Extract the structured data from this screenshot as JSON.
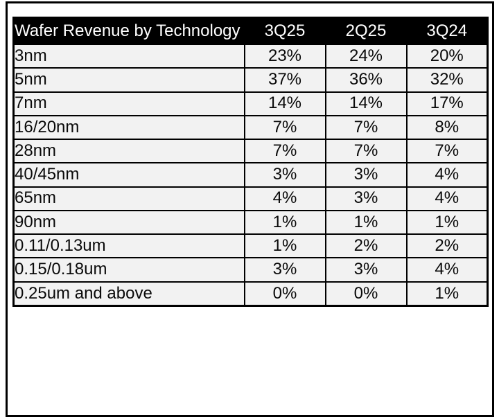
{
  "table": {
    "header": {
      "title": "Wafer Revenue by Technology",
      "columns": [
        "3Q25",
        "2Q25",
        "3Q24"
      ]
    },
    "rows": [
      {
        "label": "3nm",
        "values": [
          "23%",
          "24%",
          "20%"
        ]
      },
      {
        "label": "5nm",
        "values": [
          "37%",
          "36%",
          "32%"
        ]
      },
      {
        "label": "7nm",
        "values": [
          "14%",
          "14%",
          "17%"
        ]
      },
      {
        "label": "16/20nm",
        "values": [
          "7%",
          "7%",
          "8%"
        ]
      },
      {
        "label": "28nm",
        "values": [
          "7%",
          "7%",
          "7%"
        ]
      },
      {
        "label": "40/45nm",
        "values": [
          "3%",
          "3%",
          "4%"
        ]
      },
      {
        "label": "65nm",
        "values": [
          "4%",
          "3%",
          "4%"
        ]
      },
      {
        "label": "90nm",
        "values": [
          "1%",
          "1%",
          "1%"
        ]
      },
      {
        "label": "0.11/0.13um",
        "values": [
          "1%",
          "2%",
          "2%"
        ]
      },
      {
        "label": "0.15/0.18um",
        "values": [
          "3%",
          "3%",
          "4%"
        ]
      },
      {
        "label": "0.25um and above",
        "values": [
          "0%",
          "0%",
          "1%"
        ]
      }
    ]
  },
  "colors": {
    "header_bg": "#000000",
    "header_text": "#ffffff",
    "cell_bg": "#f2f2f2",
    "cell_text": "#0a0a0a",
    "border": "#000000",
    "page_bg": "#ffffff"
  },
  "chart_data": {
    "type": "table",
    "title": "Wafer Revenue by Technology",
    "unit": "percent of wafer revenue",
    "columns": [
      "Technology",
      "3Q25",
      "2Q25",
      "3Q24"
    ],
    "rows": [
      [
        "3nm",
        23,
        24,
        20
      ],
      [
        "5nm",
        37,
        36,
        32
      ],
      [
        "7nm",
        14,
        14,
        17
      ],
      [
        "16/20nm",
        7,
        7,
        8
      ],
      [
        "28nm",
        7,
        7,
        7
      ],
      [
        "40/45nm",
        3,
        3,
        4
      ],
      [
        "65nm",
        4,
        3,
        4
      ],
      [
        "90nm",
        1,
        1,
        1
      ],
      [
        "0.11/0.13um",
        1,
        2,
        2
      ],
      [
        "0.15/0.18um",
        3,
        3,
        4
      ],
      [
        "0.25um and above",
        0,
        0,
        1
      ]
    ]
  }
}
